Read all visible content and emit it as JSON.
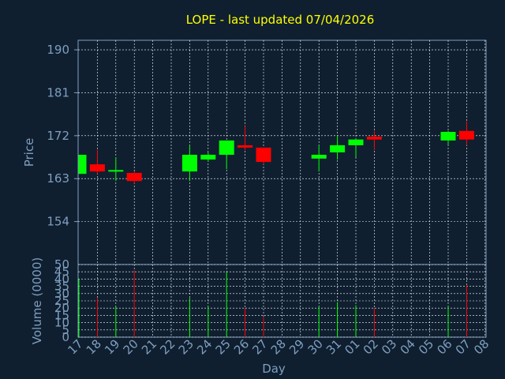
{
  "chart_data": {
    "type": "candlestick",
    "title": "LOPE - last updated 07/04/2026",
    "price": {
      "ylabel": "Price",
      "ylim": [
        145,
        192
      ],
      "ticks": [
        190,
        181,
        172,
        163,
        154
      ]
    },
    "volume": {
      "ylabel": "Volume (0000)",
      "ylim": [
        0,
        50
      ],
      "ticks": [
        50,
        45,
        40,
        35,
        30,
        25,
        20,
        15,
        10,
        5,
        0
      ]
    },
    "xlabel": "Day",
    "x_ticks": [
      "17",
      "18",
      "19",
      "20",
      "21",
      "22",
      "23",
      "24",
      "25",
      "26",
      "27",
      "28",
      "29",
      "30",
      "31",
      "01",
      "02",
      "03",
      "04",
      "05",
      "06",
      "07",
      "08"
    ],
    "grid": true,
    "candles": [
      {
        "day": "17",
        "open": 164.0,
        "close": 168.0,
        "high": 168.0,
        "low": 164.0,
        "volume": 40
      },
      {
        "day": "18",
        "open": 166.0,
        "close": 164.5,
        "high": 169.0,
        "low": 164.0,
        "volume": 27
      },
      {
        "day": "19",
        "open": 164.5,
        "close": 164.8,
        "high": 167.5,
        "low": 162.5,
        "volume": 21
      },
      {
        "day": "20",
        "open": 164.2,
        "close": 162.5,
        "high": 164.5,
        "low": 162.0,
        "volume": 46
      },
      {
        "day": "23",
        "open": 164.5,
        "close": 168.0,
        "high": 170.0,
        "low": 162.5,
        "volume": 27
      },
      {
        "day": "24",
        "open": 167.0,
        "close": 168.0,
        "high": 168.5,
        "low": 166.5,
        "volume": 21
      },
      {
        "day": "25",
        "open": 168.0,
        "close": 171.0,
        "high": 171.0,
        "low": 165.0,
        "volume": 45
      },
      {
        "day": "26",
        "open": 170.0,
        "close": 169.5,
        "high": 174.0,
        "low": 169.0,
        "volume": 20
      },
      {
        "day": "27",
        "open": 169.5,
        "close": 166.5,
        "high": 169.5,
        "low": 166.0,
        "volume": 14
      },
      {
        "day": "30",
        "open": 167.2,
        "close": 168.0,
        "high": 170.0,
        "low": 164.5,
        "volume": 21
      },
      {
        "day": "31",
        "open": 168.5,
        "close": 170.0,
        "high": 172.0,
        "low": 167.0,
        "volume": 24
      },
      {
        "day": "01",
        "open": 170.0,
        "close": 171.2,
        "high": 171.5,
        "low": 167.5,
        "volume": 22
      },
      {
        "day": "02",
        "open": 171.8,
        "close": 171.2,
        "high": 173.0,
        "low": 169.0,
        "volume": 20
      },
      {
        "day": "06",
        "open": 171.0,
        "close": 172.8,
        "high": 173.0,
        "low": 170.0,
        "volume": 21
      },
      {
        "day": "07",
        "open": 173.0,
        "close": 171.2,
        "high": 175.0,
        "low": 170.0,
        "volume": 36
      }
    ]
  },
  "colors": {
    "background": "#0f1f30",
    "axes": "#7f9fbf",
    "text": "#7f9fbf",
    "title": "#ffff00",
    "grid": "#ffffff",
    "up": "#00ff00",
    "down": "#ff0000"
  }
}
